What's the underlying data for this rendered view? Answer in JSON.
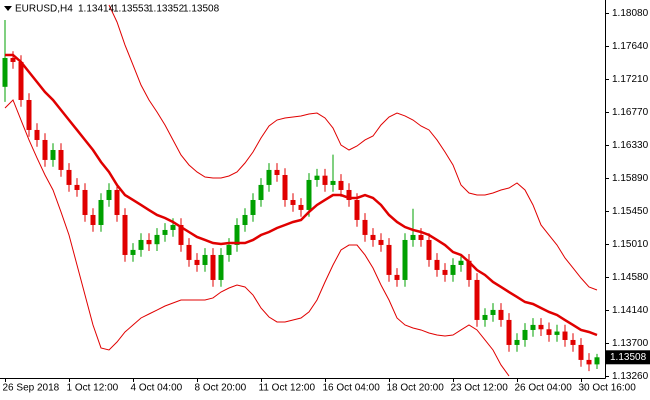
{
  "chart_data": {
    "type": "candlestick",
    "title": "EURUSD,H4",
    "categories": [
      "26 Sep 2018",
      null,
      null,
      null,
      null,
      null,
      null,
      null,
      "1 Oct 12:00",
      null,
      null,
      null,
      null,
      null,
      null,
      null,
      "4 Oct 04:00",
      null,
      null,
      null,
      null,
      null,
      null,
      null,
      "8 Oct 20:00",
      null,
      null,
      null,
      null,
      null,
      null,
      null,
      "11 Oct 12:00",
      null,
      null,
      null,
      null,
      null,
      null,
      null,
      "16 Oct 04:00",
      null,
      null,
      null,
      null,
      null,
      null,
      null,
      "18 Oct 20:00",
      null,
      null,
      null,
      null,
      null,
      null,
      null,
      "23 Oct 12:00",
      null,
      null,
      null,
      null,
      null,
      null,
      null,
      "26 Oct 04:00",
      null,
      null,
      null,
      null,
      null,
      null,
      null,
      "30 Oct 16:00",
      null,
      null
    ],
    "open": [
      1.171,
      1.17483,
      1.1743,
      1.16925,
      1.16527,
      1.16394,
      1.16129,
      1.16261,
      1.15996,
      1.15797,
      1.1573,
      1.15398,
      1.15265,
      1.15597,
      1.1573,
      1.15398,
      1.14867,
      1.14934,
      1.15066,
      1.1501,
      1.15133,
      1.15199,
      1.15265,
      1.15,
      1.14801,
      1.14734,
      1.14867,
      1.14535,
      1.14867,
      1.15,
      1.15265,
      1.15398,
      1.15597,
      1.15797,
      1.15996,
      1.15929,
      1.15597,
      1.15531,
      1.15465,
      1.15863,
      1.1592,
      1.15797,
      1.1585,
      1.1573,
      1.15597,
      1.15332,
      1.15133,
      1.15066,
      1.15,
      1.14602,
      1.14535,
      1.15066,
      1.15133,
      1.15066,
      1.14801,
      1.14668,
      1.14602,
      1.14734,
      1.1479,
      1.14535,
      1.14004,
      1.1407,
      1.14137,
      1.14004,
      1.13672,
      1.13738,
      1.13871,
      1.13938,
      1.1388,
      1.13805,
      1.1385,
      1.13738,
      1.13672,
      1.13473,
      1.13414
    ],
    "high": [
      1.17987,
      1.17573,
      1.1752,
      1.17015,
      1.16617,
      1.16484,
      1.16351,
      1.16351,
      1.16086,
      1.15887,
      1.1582,
      1.15488,
      1.15687,
      1.1582,
      1.1582,
      1.15488,
      1.15024,
      1.15156,
      1.15156,
      1.15223,
      1.15289,
      1.15355,
      1.15355,
      1.1509,
      1.14891,
      1.14957,
      1.14957,
      1.14957,
      1.1509,
      1.15355,
      1.15488,
      1.15687,
      1.15887,
      1.16086,
      1.16086,
      1.16019,
      1.15687,
      1.15621,
      1.15953,
      1.1601,
      1.1601,
      1.162,
      1.1594,
      1.1582,
      1.15687,
      1.15422,
      1.15223,
      1.15156,
      1.1509,
      1.14692,
      1.15156,
      1.1548,
      1.15223,
      1.15156,
      1.14891,
      1.14758,
      1.14824,
      1.1488,
      1.1488,
      1.14625,
      1.1416,
      1.14227,
      1.14227,
      1.14094,
      1.13828,
      1.13961,
      1.14028,
      1.14028,
      1.1397,
      1.1394,
      1.1394,
      1.13828,
      1.13762,
      1.13563,
      1.13553
    ],
    "low": [
      1.169,
      1.1734,
      1.16835,
      1.16437,
      1.16304,
      1.16039,
      1.16039,
      1.15906,
      1.15707,
      1.1564,
      1.15308,
      1.15175,
      1.15175,
      1.15507,
      1.15308,
      1.14777,
      1.14777,
      1.14844,
      1.1492,
      1.1492,
      1.15043,
      1.15109,
      1.1491,
      1.14711,
      1.14644,
      1.14644,
      1.14445,
      1.14445,
      1.14777,
      1.1491,
      1.15175,
      1.15308,
      1.15507,
      1.15707,
      1.15839,
      1.15507,
      1.15441,
      1.15375,
      1.15375,
      1.15773,
      1.15707,
      1.15707,
      1.1564,
      1.15507,
      1.15242,
      1.15043,
      1.14976,
      1.1491,
      1.14512,
      1.14445,
      1.14445,
      1.14976,
      1.14976,
      1.14711,
      1.14578,
      1.14512,
      1.14512,
      1.14644,
      1.14445,
      1.13914,
      1.13914,
      1.1398,
      1.13914,
      1.13582,
      1.13582,
      1.13648,
      1.13781,
      1.1379,
      1.13715,
      1.13715,
      1.13648,
      1.13582,
      1.13383,
      1.13324,
      1.13352
    ],
    "close": [
      1.17483,
      1.1743,
      1.16925,
      1.16527,
      1.16394,
      1.16129,
      1.16261,
      1.15996,
      1.15797,
      1.1573,
      1.15398,
      1.15265,
      1.15597,
      1.1573,
      1.15398,
      1.14867,
      1.14934,
      1.15066,
      1.1501,
      1.15133,
      1.15199,
      1.15265,
      1.15,
      1.14801,
      1.14734,
      1.14867,
      1.14535,
      1.14867,
      1.15,
      1.15265,
      1.15398,
      1.15597,
      1.15797,
      1.15996,
      1.15929,
      1.15597,
      1.15531,
      1.15465,
      1.15863,
      1.1592,
      1.15797,
      1.1585,
      1.1573,
      1.15597,
      1.15332,
      1.15133,
      1.15066,
      1.15,
      1.14602,
      1.14535,
      1.15066,
      1.15133,
      1.15066,
      1.14801,
      1.14668,
      1.14602,
      1.14734,
      1.1479,
      1.14535,
      1.14004,
      1.1407,
      1.14137,
      1.14004,
      1.13672,
      1.13738,
      1.13871,
      1.13938,
      1.1388,
      1.13805,
      1.1385,
      1.13738,
      1.13672,
      1.13473,
      1.13414,
      1.13508
    ],
    "upper_band": [
      null,
      null,
      null,
      null,
      null,
      null,
      null,
      null,
      null,
      null,
      null,
      null,
      null,
      1.18187,
      1.17961,
      1.17655,
      1.1739,
      1.17124,
      1.16925,
      1.16766,
      1.16593,
      1.16394,
      1.16195,
      1.16062,
      1.15969,
      1.15902,
      1.15889,
      1.15889,
      1.15916,
      1.15969,
      1.16088,
      1.16234,
      1.1642,
      1.1658,
      1.16659,
      1.16686,
      1.16699,
      1.16713,
      1.16739,
      1.16752,
      1.16686,
      1.16553,
      1.16327,
      1.16261,
      1.16314,
      1.16394,
      1.16447,
      1.16593,
      1.16699,
      1.16752,
      1.16713,
      1.16659,
      1.1658,
      1.16527,
      1.16394,
      1.16234,
      1.16062,
      1.15796,
      1.1569,
      1.15663,
      1.15663,
      1.1569,
      1.1573,
      1.15756,
      1.15823,
      1.1573,
      1.15531,
      1.15265,
      1.15132,
      1.14999,
      1.14827,
      1.14694,
      1.14561,
      1.14442,
      1.14402
    ],
    "middle_band": [
      1.17523,
      1.17523,
      1.1743,
      1.17297,
      1.17164,
      1.17031,
      1.16925,
      1.16792,
      1.16659,
      1.16527,
      1.16394,
      1.16261,
      1.16102,
      1.15969,
      1.15796,
      1.15663,
      1.15597,
      1.15531,
      1.15464,
      1.15398,
      1.15358,
      1.15305,
      1.15238,
      1.15172,
      1.15106,
      1.15066,
      1.15026,
      1.15013,
      1.15026,
      1.15026,
      1.15026,
      1.15066,
      1.15132,
      1.15172,
      1.15225,
      1.15265,
      1.15305,
      1.15331,
      1.15438,
      1.15531,
      1.15597,
      1.15663,
      1.15663,
      1.15624,
      1.15624,
      1.15663,
      1.15624,
      1.15531,
      1.15398,
      1.15305,
      1.15238,
      1.15199,
      1.15172,
      1.15132,
      1.15066,
      1.14999,
      1.14906,
      1.14867,
      1.14774,
      1.14667,
      1.14601,
      1.14508,
      1.14442,
      1.14375,
      1.14309,
      1.14242,
      1.14216,
      1.14163,
      1.1411,
      1.1407,
      1.14003,
      1.13937,
      1.13871,
      1.13844,
      1.13804
    ],
    "lower_band": [
      1.16819,
      1.16925,
      1.16659,
      1.16394,
      1.16155,
      1.15929,
      1.1573,
      1.15438,
      1.15132,
      1.14734,
      1.14335,
      1.13937,
      1.13632,
      1.13605,
      1.13711,
      1.13844,
      1.13937,
      1.1403,
      1.14083,
      1.14136,
      1.14189,
      1.14229,
      1.14269,
      1.14269,
      1.14269,
      1.14269,
      1.14296,
      1.14375,
      1.14428,
      1.14468,
      1.14442,
      1.14335,
      1.14163,
      1.14043,
      1.13977,
      1.13977,
      1.14003,
      1.1403,
      1.1411,
      1.14269,
      1.14508,
      1.14734,
      1.14933,
      1.14999,
      1.14999,
      1.14867,
      1.14694,
      1.14468,
      1.14269,
      1.1403,
      1.13937,
      1.13897,
      1.13871,
      1.13831,
      1.13804,
      1.13791,
      1.13804,
      1.13871,
      1.13937,
      1.13871,
      1.13738,
      1.13605,
      1.13406,
      1.1326,
      null,
      null,
      null,
      null,
      null,
      null,
      null,
      null,
      null,
      null,
      null
    ],
    "ylim": [
      1.13233,
      1.18253
    ],
    "yticks": [
      {
        "value": 1.1808,
        "label": "1.18080"
      },
      {
        "value": 1.1764,
        "label": "1.17640"
      },
      {
        "value": 1.1721,
        "label": "1.17210"
      },
      {
        "value": 1.1677,
        "label": "1.16770"
      },
      {
        "value": 1.1633,
        "label": "1.16330"
      },
      {
        "value": 1.1589,
        "label": "1.15890"
      },
      {
        "value": 1.1545,
        "label": "1.15450"
      },
      {
        "value": 1.1501,
        "label": "1.15010"
      },
      {
        "value": 1.1458,
        "label": "1.14580"
      },
      {
        "value": 1.1414,
        "label": "1.14140"
      },
      {
        "value": 1.137,
        "label": "1.13700"
      },
      {
        "value": 1.1326,
        "label": "1.13260"
      }
    ],
    "up_color": "#00a000",
    "down_color": "#e00000",
    "band_color": "#e00000",
    "grid": false
  }
}
